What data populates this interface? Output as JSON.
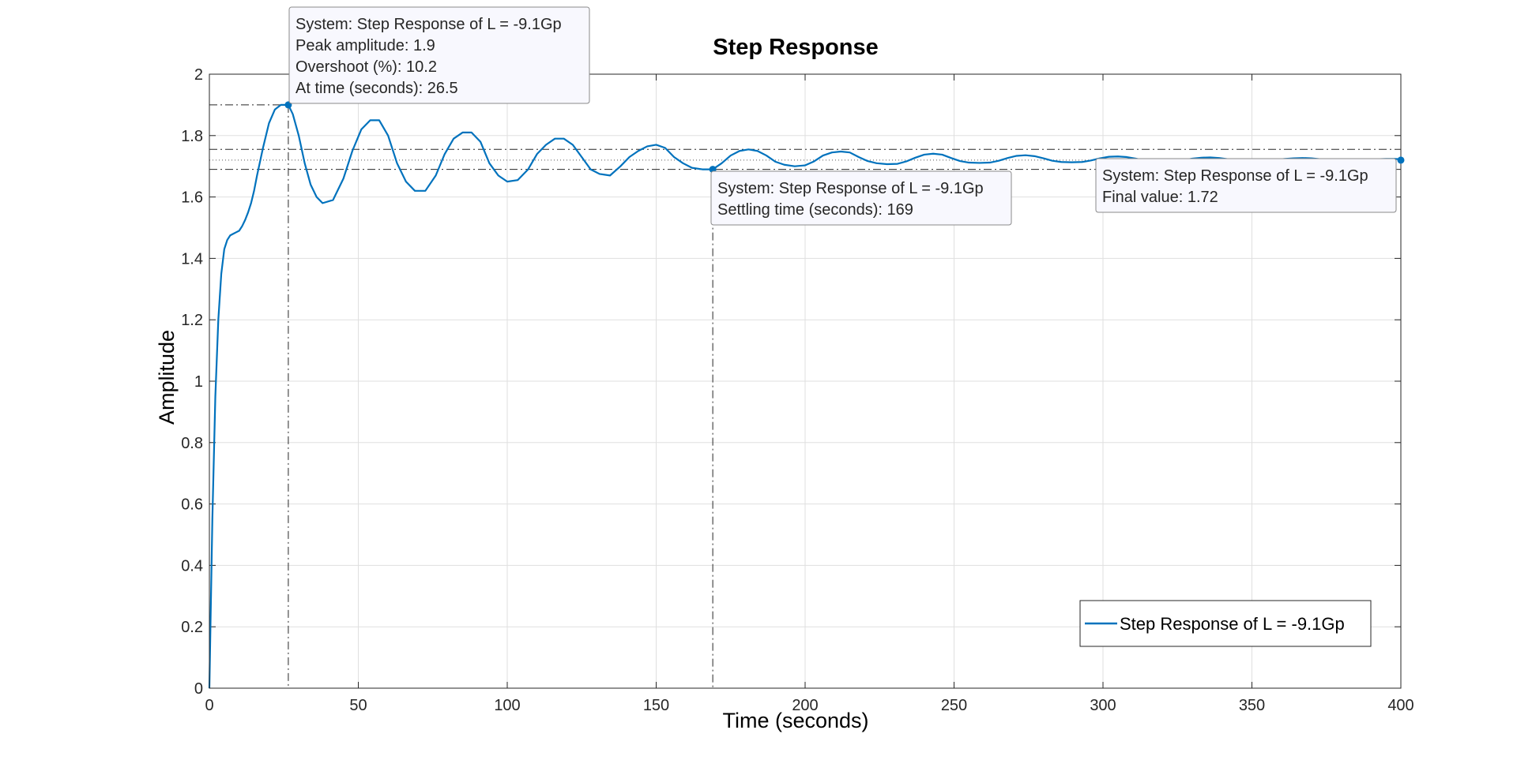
{
  "chart_data": {
    "type": "line",
    "title": "Step Response",
    "xlabel": "Time (seconds)",
    "ylabel": "Amplitude",
    "xlim": [
      0,
      400
    ],
    "ylim": [
      0,
      2
    ],
    "xticks": [
      "0",
      "50",
      "100",
      "150",
      "200",
      "250",
      "300",
      "350",
      "400"
    ],
    "yticks": [
      "0",
      "0.2",
      "0.4",
      "0.6",
      "0.8",
      "1",
      "1.2",
      "1.4",
      "1.6",
      "1.8",
      "2"
    ],
    "grid": true,
    "legend_position": "bottom-right",
    "series": [
      {
        "name": "Step Response of L = -9.1Gp",
        "color": "#0072BD",
        "x": [
          0,
          1,
          2,
          3,
          4,
          5,
          6,
          7,
          8,
          9,
          10,
          11,
          12,
          13,
          14,
          15,
          16,
          18,
          20,
          22,
          24,
          26.5,
          28,
          30,
          32,
          34,
          36,
          38,
          41.5,
          45,
          48,
          51,
          54,
          57,
          60,
          63,
          66,
          69,
          72.5,
          76,
          79,
          82,
          85,
          88,
          91,
          94,
          97,
          100,
          103.5,
          107,
          110,
          113,
          116,
          119,
          122,
          125,
          128,
          131,
          134.5,
          138,
          141,
          144,
          147,
          150,
          153,
          156,
          159,
          162,
          165.5,
          169,
          172,
          175,
          178,
          181,
          184,
          187,
          190,
          193,
          196.5,
          200,
          203,
          206,
          209,
          212,
          215,
          218,
          221,
          224,
          227.5,
          231,
          234,
          237,
          240,
          243,
          246,
          249,
          252,
          255,
          258.5,
          262,
          265,
          268,
          271,
          274,
          277,
          280,
          283,
          286,
          289.5,
          293,
          296,
          299,
          302,
          305,
          308,
          311,
          314,
          317,
          320.5,
          324,
          327,
          330,
          333,
          336,
          339,
          342,
          345,
          348,
          351.5,
          355,
          358,
          361,
          364,
          367,
          370,
          373,
          376,
          379,
          382.5,
          386,
          389,
          392,
          395,
          398,
          400
        ],
        "y": [
          0,
          0.55,
          0.95,
          1.2,
          1.35,
          1.43,
          1.46,
          1.475,
          1.48,
          1.485,
          1.49,
          1.505,
          1.525,
          1.55,
          1.58,
          1.62,
          1.67,
          1.76,
          1.84,
          1.885,
          1.9,
          1.9,
          1.87,
          1.8,
          1.71,
          1.64,
          1.6,
          1.58,
          1.59,
          1.66,
          1.75,
          1.82,
          1.85,
          1.85,
          1.8,
          1.71,
          1.65,
          1.62,
          1.62,
          1.67,
          1.74,
          1.79,
          1.81,
          1.81,
          1.78,
          1.71,
          1.67,
          1.65,
          1.655,
          1.69,
          1.74,
          1.77,
          1.79,
          1.79,
          1.77,
          1.73,
          1.69,
          1.675,
          1.67,
          1.7,
          1.73,
          1.75,
          1.765,
          1.77,
          1.76,
          1.73,
          1.71,
          1.695,
          1.69,
          1.69,
          1.71,
          1.735,
          1.75,
          1.755,
          1.75,
          1.735,
          1.715,
          1.705,
          1.7,
          1.703,
          1.716,
          1.735,
          1.745,
          1.748,
          1.745,
          1.73,
          1.717,
          1.71,
          1.707,
          1.708,
          1.716,
          1.728,
          1.738,
          1.741,
          1.738,
          1.727,
          1.717,
          1.712,
          1.711,
          1.712,
          1.718,
          1.727,
          1.734,
          1.736,
          1.733,
          1.726,
          1.718,
          1.714,
          1.713,
          1.714,
          1.719,
          1.726,
          1.731,
          1.732,
          1.73,
          1.725,
          1.719,
          1.716,
          1.716,
          1.717,
          1.72,
          1.725,
          1.728,
          1.729,
          1.727,
          1.723,
          1.72,
          1.718,
          1.718,
          1.719,
          1.721,
          1.724,
          1.726,
          1.727,
          1.726,
          1.723,
          1.721,
          1.719,
          1.719,
          1.72,
          1.721,
          1.723,
          1.724,
          1.724,
          1.723
        ]
      }
    ],
    "characteristics": {
      "peak": {
        "x": 26.5,
        "y": 1.9,
        "y_final_upper": 1.755,
        "y_final_lower": 1.69,
        "y_final": 1.72
      },
      "settling": {
        "x": 169,
        "y": 1.69
      },
      "final": {
        "x": 400,
        "y": 1.72
      }
    },
    "datatips": [
      {
        "anchor": "peak",
        "lines": [
          "System: Step Response of L = -9.1Gp",
          "Peak amplitude: 1.9",
          "Overshoot (%): 10.2",
          "At time (seconds): 26.5"
        ]
      },
      {
        "anchor": "settling",
        "lines": [
          "System: Step Response of L = -9.1Gp",
          "Settling time (seconds): 169"
        ]
      },
      {
        "anchor": "final",
        "lines": [
          "System: Step Response of L = -9.1Gp",
          "Final value: 1.72"
        ]
      }
    ]
  }
}
